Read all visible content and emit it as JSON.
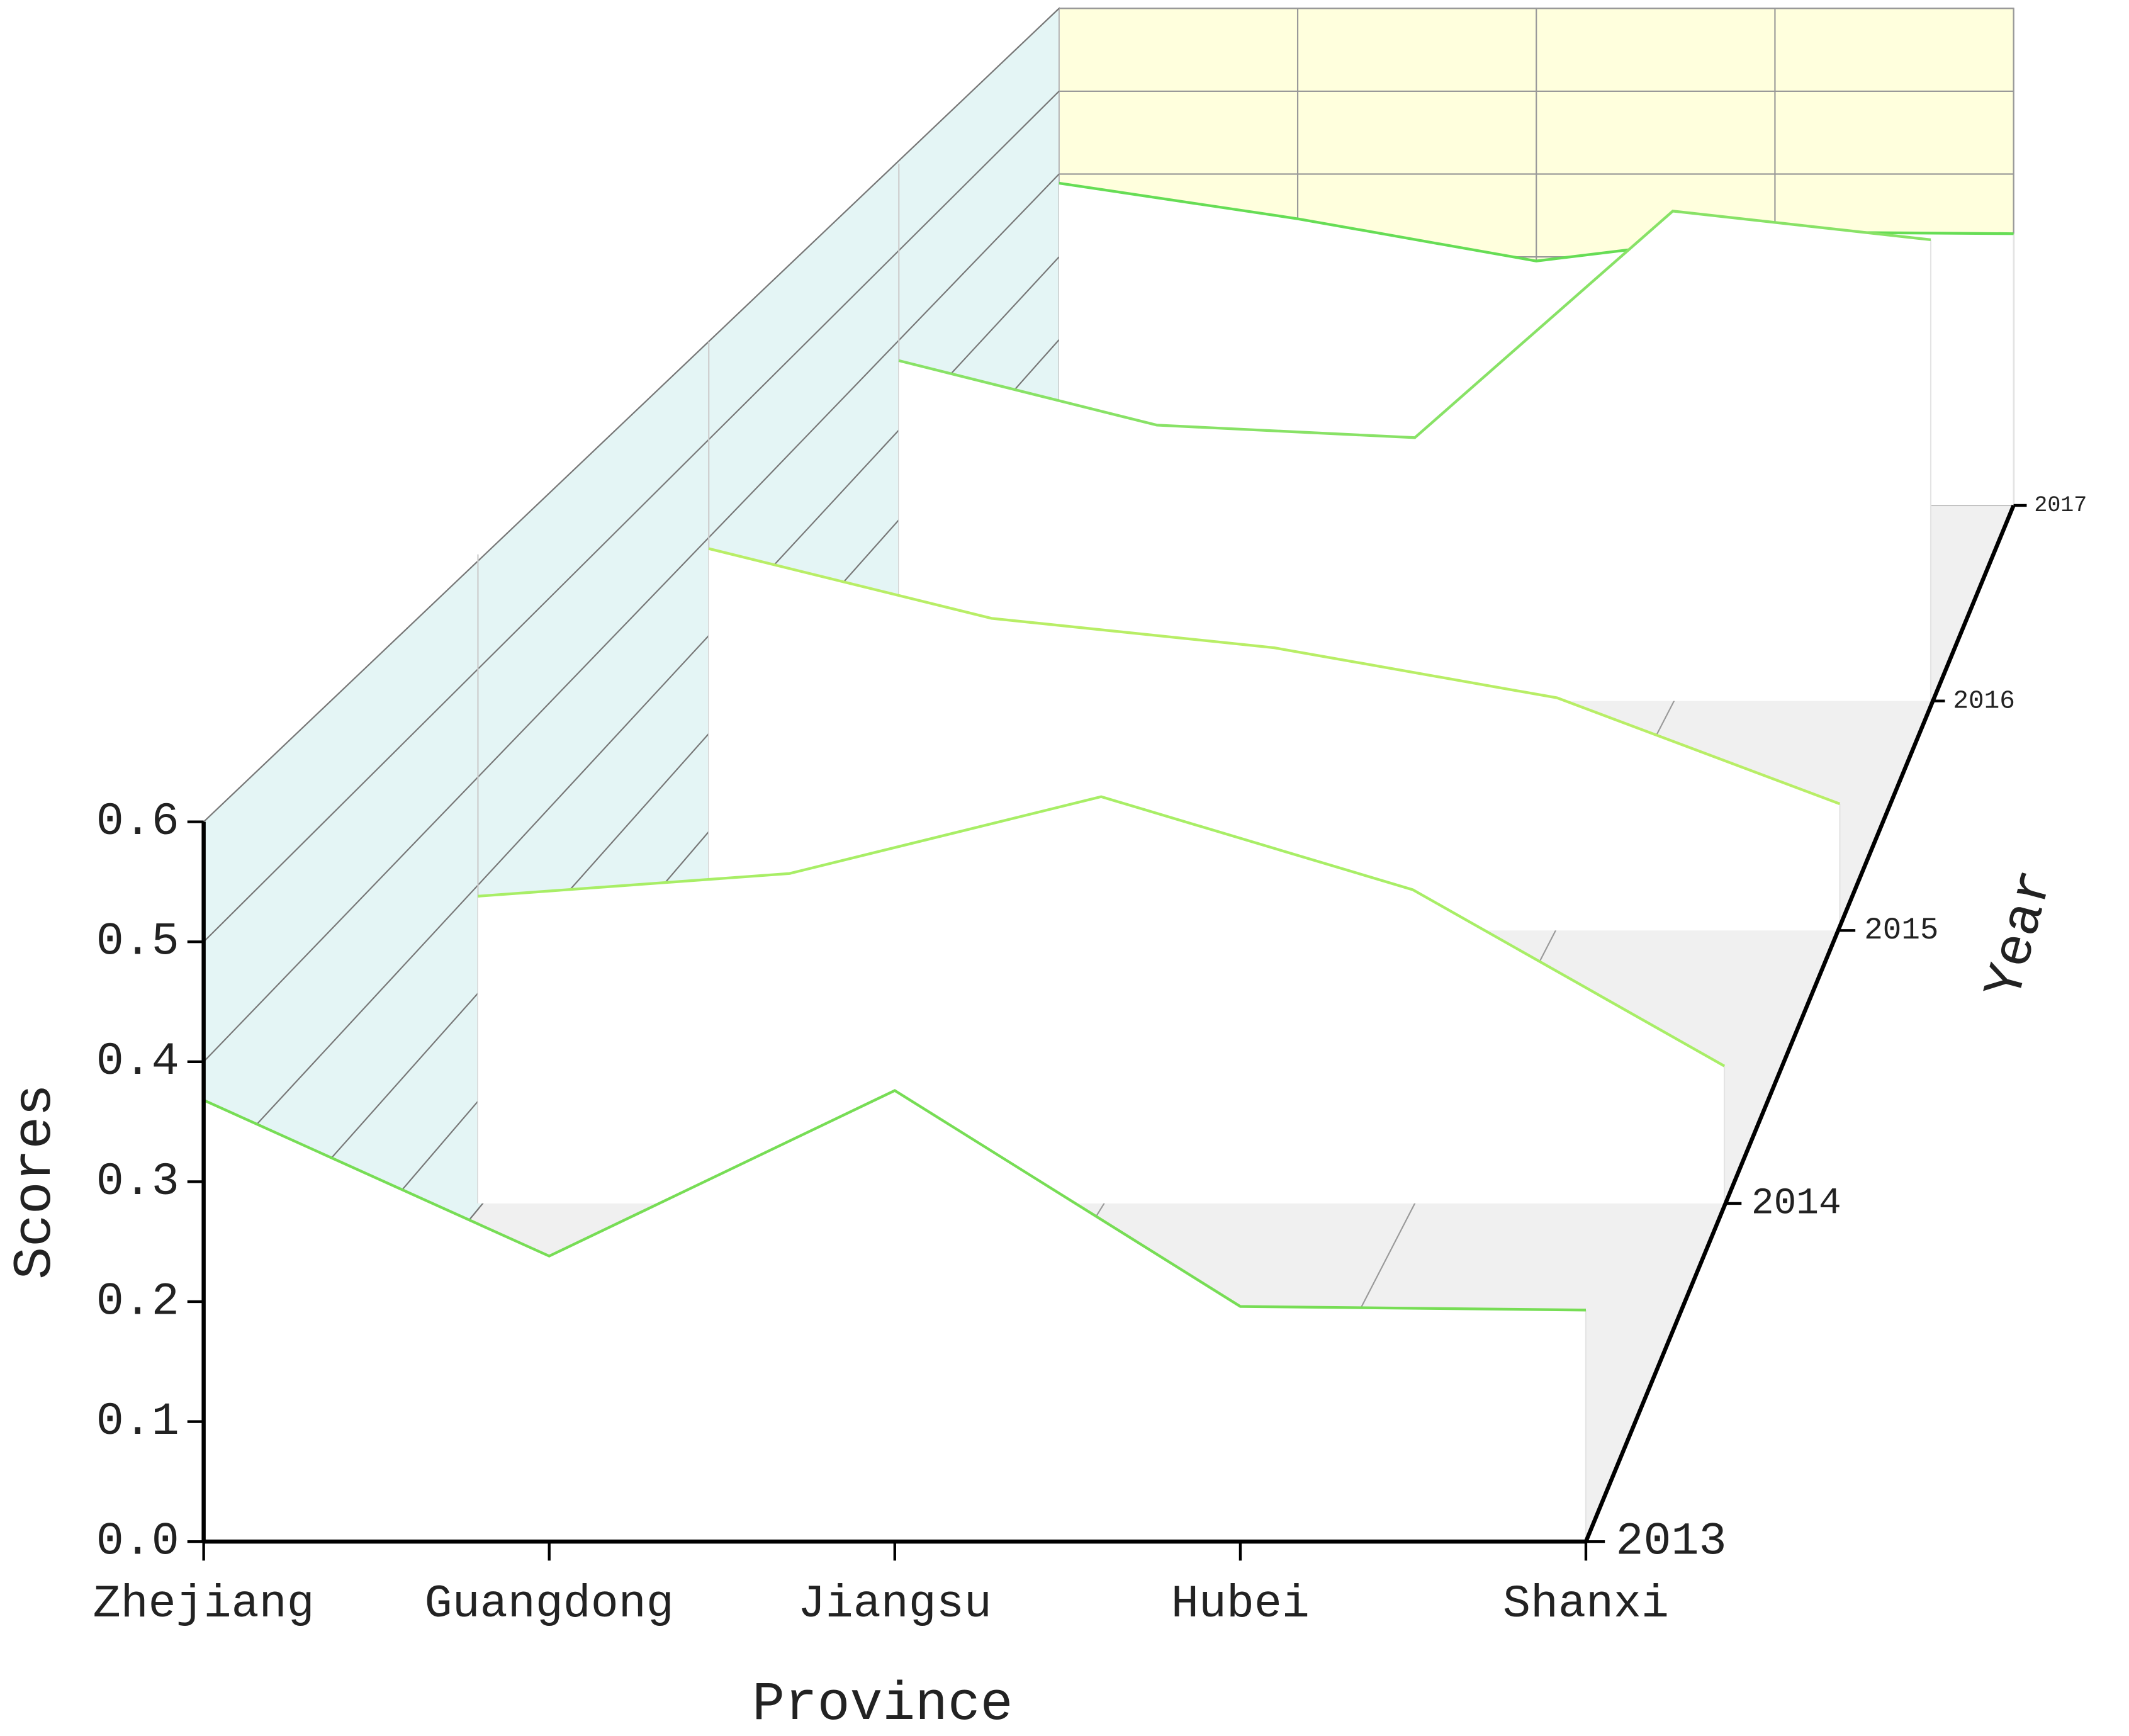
{
  "chart_data": {
    "type": "waterfall3d",
    "x_label": "Province",
    "y_label": "Scores",
    "z_label": "Year",
    "categories": [
      "Zhejiang",
      "Guangdong",
      "Jiangsu",
      "Hubei",
      "Shanxi"
    ],
    "series": [
      {
        "name": "2013",
        "color": "#77dd55",
        "values": [
          0.368,
          0.238,
          0.376,
          0.196,
          0.193
        ]
      },
      {
        "name": "2014",
        "color": "#a8ee66",
        "values": [
          0.284,
          0.305,
          0.376,
          0.29,
          0.127
        ]
      },
      {
        "name": "2015",
        "color": "#b8ee66",
        "values": [
          0.389,
          0.318,
          0.288,
          0.237,
          0.129
        ]
      },
      {
        "name": "2016",
        "color": "#88e266",
        "values": [
          0.38,
          0.308,
          0.294,
          0.547,
          0.515
        ]
      },
      {
        "name": "2017",
        "color": "#66dd55",
        "values": [
          0.389,
          0.346,
          0.295,
          0.33,
          0.328
        ]
      }
    ],
    "ylim": [
      0,
      0.6
    ],
    "yticks": [
      {
        "value": 0,
        "label": "0.0"
      },
      0.1,
      0.2,
      0.3,
      0.4,
      0.5,
      0.6
    ],
    "grid": true
  }
}
